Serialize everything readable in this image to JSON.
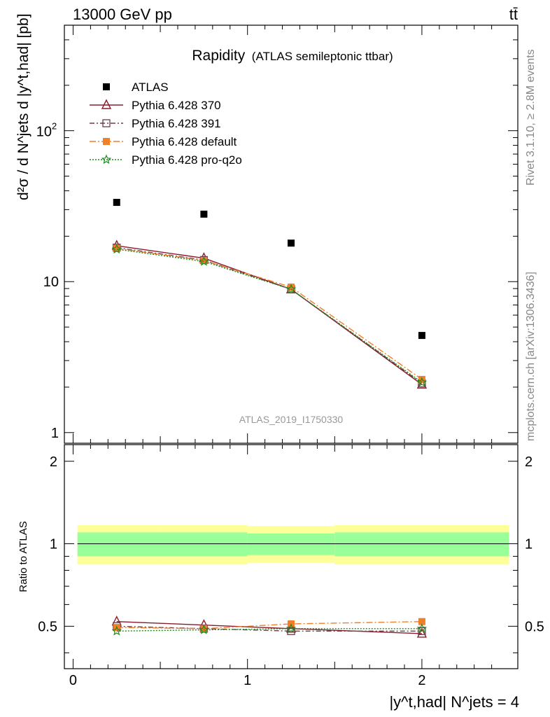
{
  "header": {
    "left": "13000 GeV pp",
    "right": "tt̄"
  },
  "chart_data": {
    "type": "line",
    "title": "Rapidity",
    "subtitle": "(ATLAS semileptonic ttbar)",
    "ylabel": "d²σ / d N^jets d |y^t,had| [pb]",
    "ratio_ylabel": "Ratio to ATLAS",
    "xlabel": "|y^t,had| N^jets = 4",
    "analysis_id": "ATLAS_2019_I1750330",
    "side_text_top": "Rivet 3.1.10, ≥ 2.8M events",
    "side_text_bottom": "mcplots.cern.ch [arXiv:1306.3436]",
    "x_range": [
      -0.05,
      2.55
    ],
    "y_scale": "log",
    "y_range": [
      0.85,
      500
    ],
    "ratio_range": [
      0.35,
      2.3
    ],
    "x_ticks": [
      "0",
      "1",
      "2"
    ],
    "y_ticks": [
      "1",
      "10",
      "10²"
    ],
    "ratio_ticks": [
      "0.5",
      "1",
      "2"
    ],
    "x": [
      0.25,
      0.75,
      1.25,
      2.0
    ],
    "bin_edges": [
      0,
      0.5,
      1.0,
      1.5,
      2.5
    ],
    "data": {
      "name": "ATLAS",
      "color": "#000000",
      "values": [
        33.5,
        28.0,
        18.0,
        4.4
      ],
      "band_inner": [
        [
          0.9,
          1.1
        ],
        [
          0.9,
          1.1
        ],
        [
          0.91,
          1.09
        ],
        [
          0.9,
          1.1
        ]
      ],
      "band_outer": [
        [
          0.84,
          1.17
        ],
        [
          0.84,
          1.17
        ],
        [
          0.85,
          1.16
        ],
        [
          0.84,
          1.17
        ]
      ]
    },
    "series": [
      {
        "name": "Pythia 6.428 370",
        "color": "#8b1a2b",
        "dash": "",
        "marker": "triangle",
        "values": [
          17.3,
          14.3,
          8.9,
          2.08
        ],
        "ratio": [
          0.52,
          0.505,
          0.49,
          0.47
        ]
      },
      {
        "name": "Pythia 6.428 391",
        "color": "#6b3d4d",
        "dash": "7,3,2,3",
        "marker": "square-open",
        "values": [
          16.8,
          13.9,
          8.9,
          2.12
        ],
        "ratio": [
          0.5,
          0.49,
          0.48,
          0.48
        ]
      },
      {
        "name": "Pythia 6.428 default",
        "color": "#f07f2a",
        "dash": "9,3,2,3",
        "marker": "square",
        "values": [
          16.6,
          13.8,
          9.2,
          2.25
        ],
        "ratio": [
          0.495,
          0.49,
          0.51,
          0.52
        ]
      },
      {
        "name": "Pythia 6.428 pro-q2o",
        "color": "#1a8c1a",
        "dash": "2,2",
        "marker": "star",
        "values": [
          16.4,
          13.6,
          8.9,
          2.15
        ],
        "ratio": [
          0.48,
          0.485,
          0.49,
          0.49
        ]
      }
    ],
    "legend_position": "top-left",
    "band_colors": {
      "inner": "#99ff99",
      "outer": "#ffff99"
    }
  }
}
